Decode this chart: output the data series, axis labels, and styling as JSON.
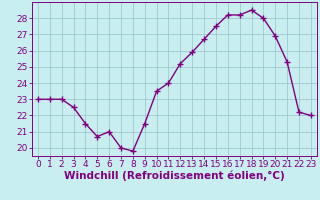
{
  "x": [
    0,
    1,
    2,
    3,
    4,
    5,
    6,
    7,
    8,
    9,
    10,
    11,
    12,
    13,
    14,
    15,
    16,
    17,
    18,
    19,
    20,
    21,
    22,
    23
  ],
  "y": [
    23.0,
    23.0,
    23.0,
    22.5,
    21.5,
    20.7,
    21.0,
    20.0,
    19.8,
    21.5,
    23.5,
    24.0,
    25.2,
    25.9,
    26.7,
    27.5,
    28.2,
    28.2,
    28.5,
    28.0,
    26.9,
    25.3,
    22.2,
    22.0
  ],
  "line_color": "#800080",
  "marker": "+",
  "marker_color": "#800080",
  "bg_color": "#c8eef0",
  "grid_color": "#a0c8d0",
  "xlabel": "Windchill (Refroidissement éolien,°C)",
  "xlabel_color": "#800080",
  "ylim": [
    19.5,
    29.0
  ],
  "xlim": [
    -0.5,
    23.5
  ],
  "yticks": [
    20,
    21,
    22,
    23,
    24,
    25,
    26,
    27,
    28
  ],
  "xticks": [
    0,
    1,
    2,
    3,
    4,
    5,
    6,
    7,
    8,
    9,
    10,
    11,
    12,
    13,
    14,
    15,
    16,
    17,
    18,
    19,
    20,
    21,
    22,
    23
  ],
  "tick_color": "#800080",
  "tick_label_fontsize": 6.5,
  "xlabel_fontsize": 7.5,
  "line_width": 1.0,
  "marker_size": 4,
  "marker_linewidth": 1.0
}
